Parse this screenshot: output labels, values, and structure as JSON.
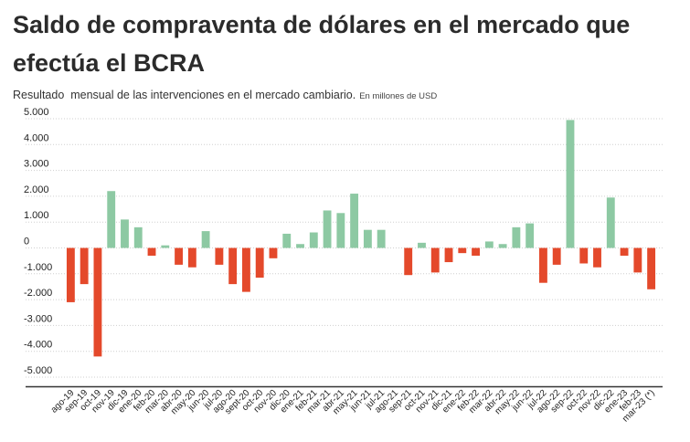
{
  "header": {
    "title": "Saldo de compraventa de dólares en el mercado que efectúa el BCRA",
    "subtitle": "Resultado  mensual de las intervenciones en el mercado cambiario.",
    "units_note": "En millones de USD"
  },
  "colors": {
    "positive": "#8dc9a3",
    "negative": "#e4492b",
    "grid": "#cfcfcf",
    "axis": "#333333"
  },
  "chart_data": {
    "type": "bar",
    "title": "Saldo de compraventa de dólares en el mercado que efectúa el BCRA",
    "subtitle": "Resultado  mensual de las intervenciones en el mercado cambiario.",
    "units": "En millones de USD",
    "xlabel": "",
    "ylabel": "",
    "ylim": [
      -5500,
      5000
    ],
    "yticks": [
      5000,
      4000,
      3000,
      2000,
      1000,
      0,
      -1000,
      -2000,
      -3000,
      -4000,
      -5000
    ],
    "ytick_labels": [
      "5.000",
      "4.000",
      "3.000",
      "2.000",
      "1.000",
      "0",
      "-1.000",
      "-2.000",
      "-3.000",
      "-4.000",
      "-5.000"
    ],
    "grid": true,
    "categories": [
      "ago-19",
      "sep-19",
      "oct-19",
      "nov-19",
      "dic-19",
      "ene-20",
      "feb-20",
      "mar-20",
      "abr-20",
      "may-20",
      "jun-20",
      "jul-20",
      "ago-20",
      "sept-20",
      "oct-20",
      "nov-20",
      "dic-20",
      "ene-21",
      "feb-21",
      "mar-21",
      "abr-21",
      "may-21",
      "jun-21",
      "jul-21",
      "ago-21",
      "sep-21",
      "oct-21",
      "nov-21",
      "dic-21",
      "ene-22",
      "feb-22",
      "mar-22",
      "abr-22",
      "may-22",
      "jun-22",
      "jul-22",
      "ago-22",
      "sep-22",
      "oct-22",
      "nov-22",
      "dic-22",
      "ene-23",
      "feb-23",
      "mar-23 (*)"
    ],
    "values": [
      -2100,
      -1400,
      -4200,
      2200,
      1100,
      800,
      -300,
      100,
      -650,
      -750,
      650,
      -650,
      -1400,
      -1700,
      -1150,
      -400,
      550,
      150,
      600,
      1450,
      1350,
      2100,
      700,
      700,
      0,
      -1050,
      200,
      -950,
      -550,
      -200,
      -300,
      250,
      150,
      800,
      950,
      -1350,
      -650,
      4950,
      -600,
      -750,
      1950,
      -300,
      -950,
      -1600
    ]
  }
}
